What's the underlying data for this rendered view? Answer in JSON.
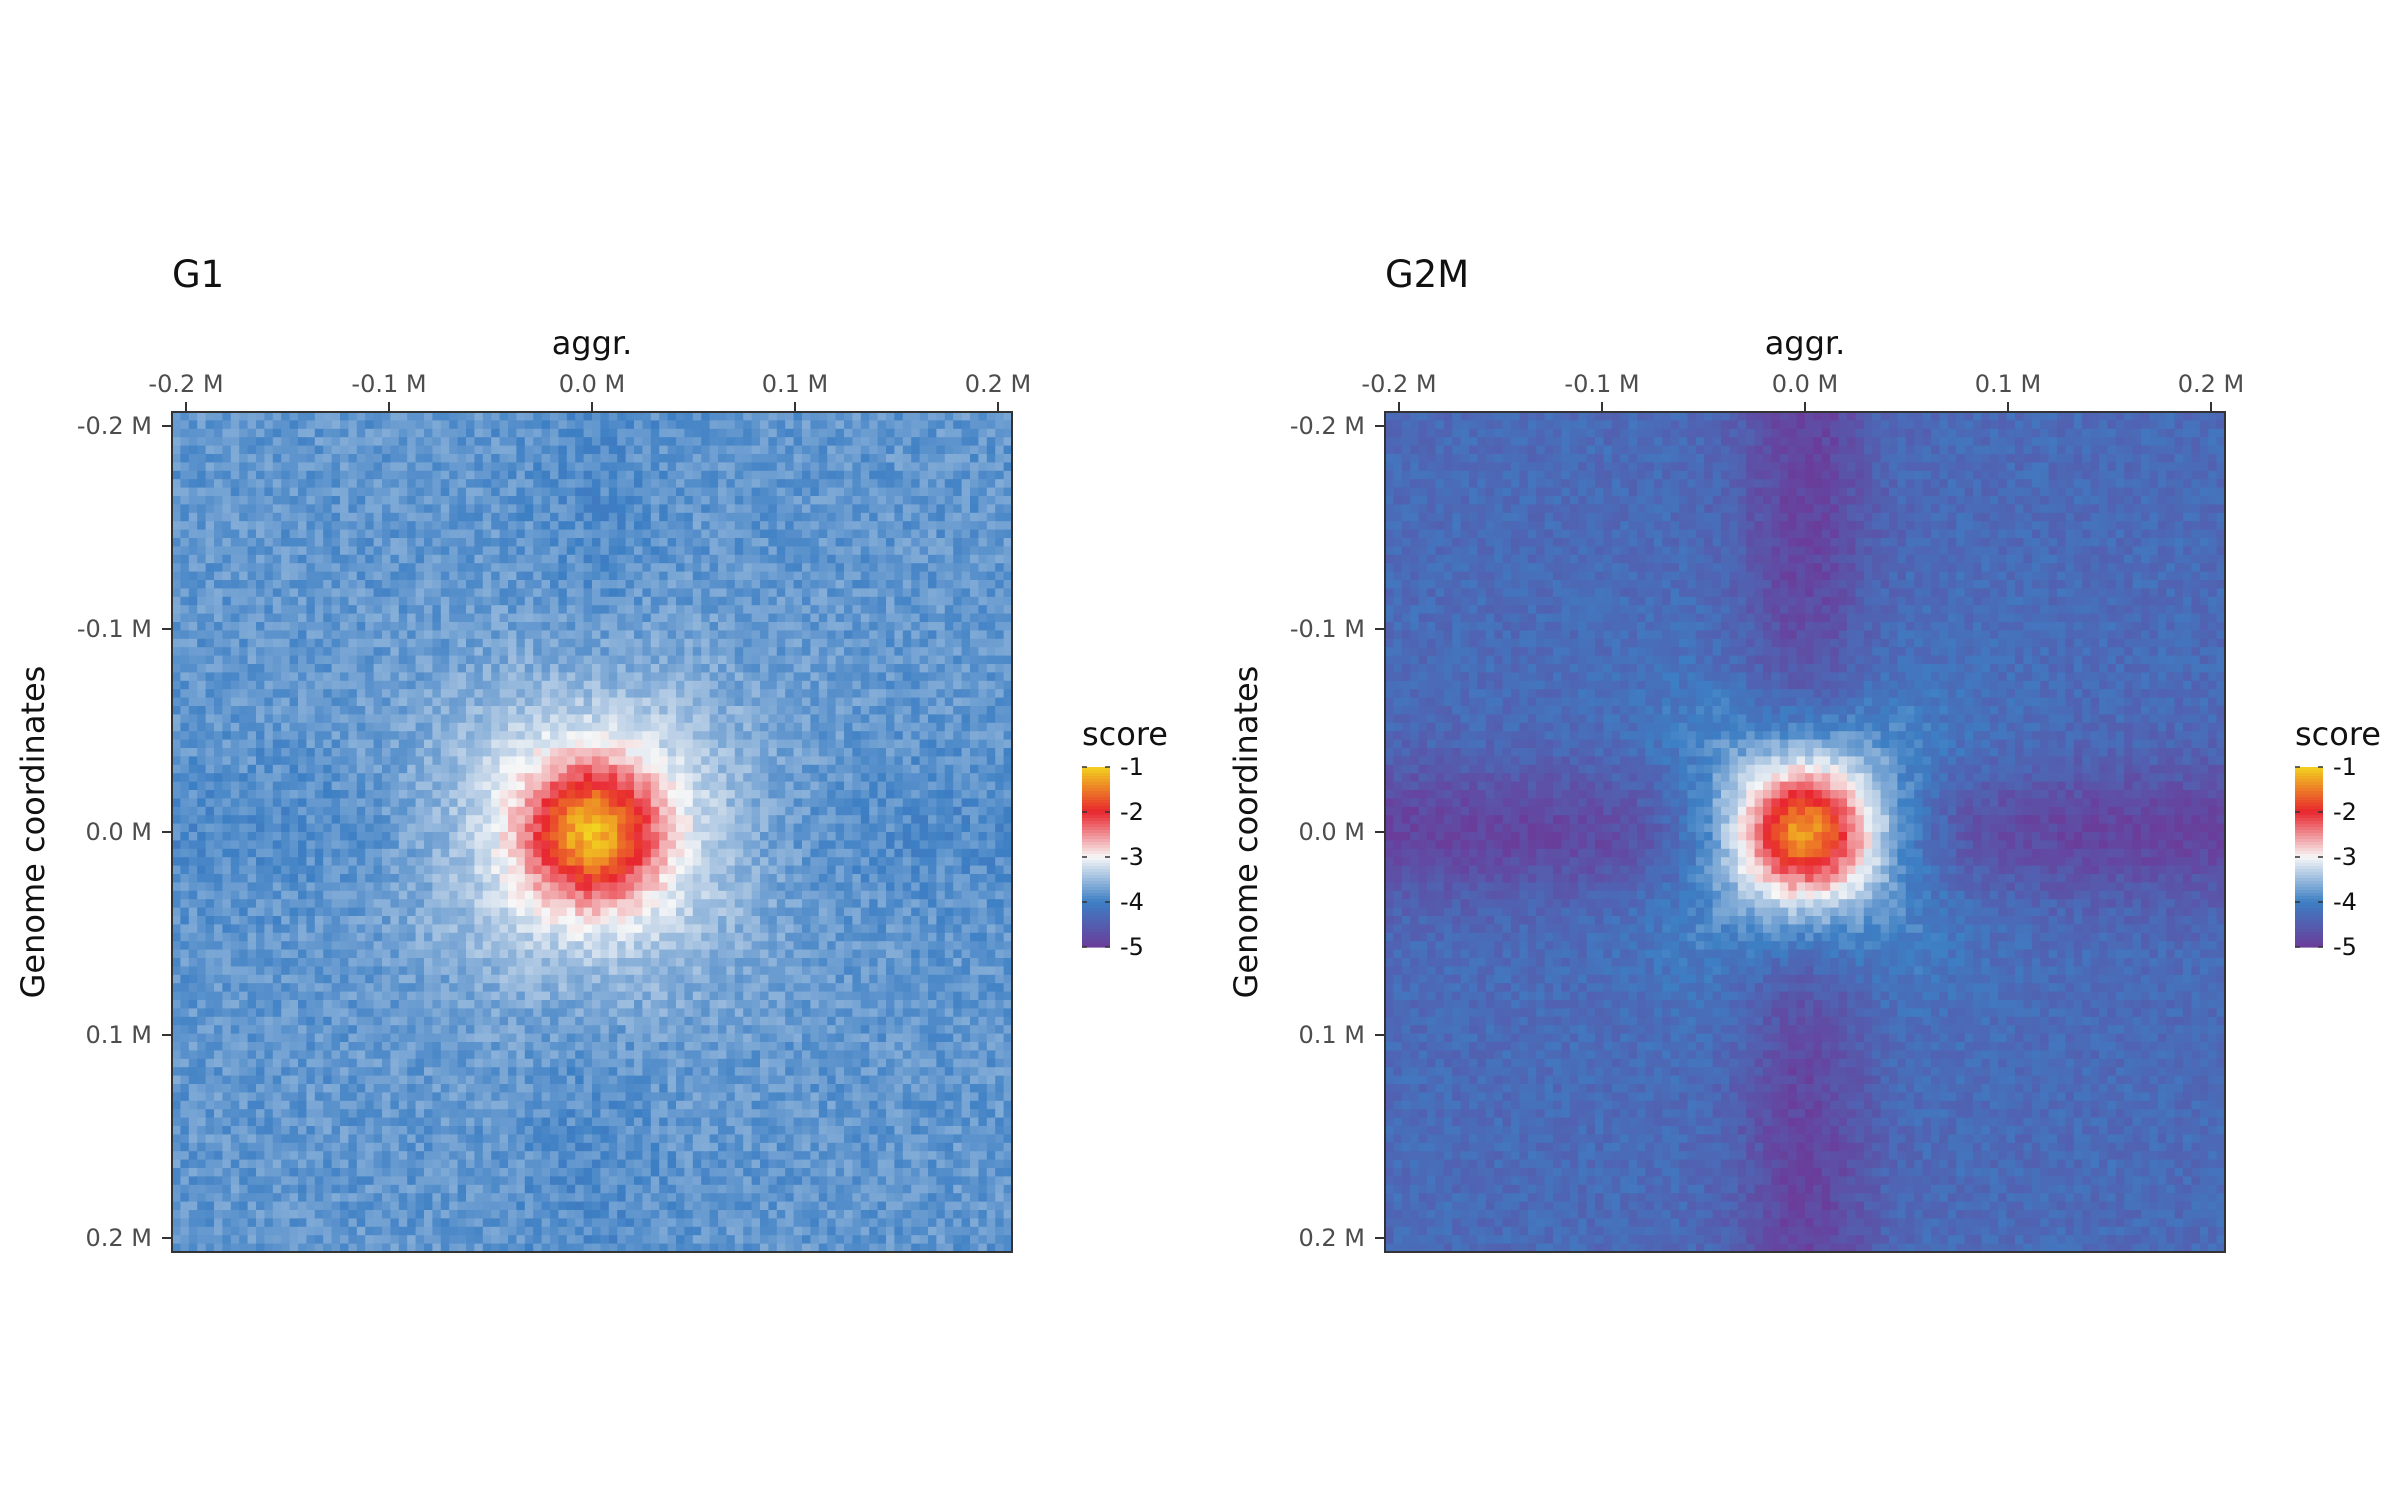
{
  "chart_data": [
    {
      "type": "heatmap",
      "title": "G1",
      "xlabel": "aggr.",
      "ylabel": "Genome coordinates",
      "x_ticks": [
        "-0.2 M",
        "-0.1 M",
        "0.0 M",
        "0.1 M",
        "0.2 M"
      ],
      "y_ticks": [
        "-0.2 M",
        "-0.1 M",
        "0.0 M",
        "0.1 M",
        "0.2 M"
      ],
      "x_range_mb": [
        -0.2,
        0.2
      ],
      "y_range_mb": [
        -0.2,
        0.2
      ],
      "pattern": {
        "background": -3.8,
        "center_peak": -2.0,
        "cross_arms": -3.9,
        "cross_arm_extent": 0.1
      },
      "legend": {
        "title": "score",
        "labels": [
          "-1",
          "-2",
          "-3",
          "-4",
          "-5"
        ],
        "range": [
          -5,
          -1
        ],
        "colors": [
          "#f2d31f",
          "#e8262f",
          "#f7f7f7",
          "#3d7fc4",
          "#6a3d9a"
        ]
      }
    },
    {
      "type": "heatmap",
      "title": "G2M",
      "xlabel": "aggr.",
      "ylabel": "Genome coordinates",
      "x_ticks": [
        "-0.2 M",
        "-0.1 M",
        "0.0 M",
        "0.1 M",
        "0.2 M"
      ],
      "y_ticks": [
        "-0.2 M",
        "-0.1 M",
        "0.0 M",
        "0.1 M",
        "0.2 M"
      ],
      "x_range_mb": [
        -0.2,
        0.2
      ],
      "y_range_mb": [
        -0.2,
        0.2
      ],
      "pattern": {
        "background": -4.3,
        "center_peak": -2.2,
        "cross_arms": -4.9,
        "cross_arm_extent": 0.2
      },
      "legend": {
        "title": "score",
        "labels": [
          "-1",
          "-2",
          "-3",
          "-4",
          "-5"
        ],
        "range": [
          -5,
          -1
        ],
        "colors": [
          "#f2d31f",
          "#e8262f",
          "#f7f7f7",
          "#3d7fc4",
          "#6a3d9a"
        ]
      }
    }
  ]
}
